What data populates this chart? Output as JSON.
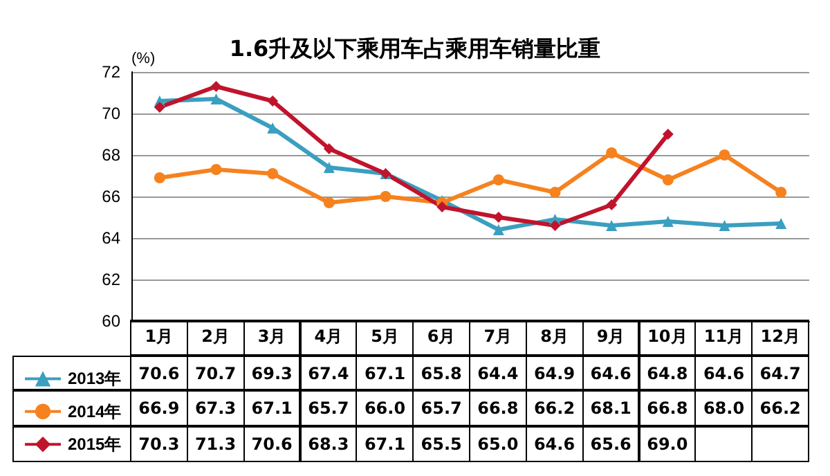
{
  "chart_data": {
    "type": "line",
    "title": "1.6升及以下乘用车占乘用车销量比重",
    "ylabel": "(%)",
    "categories": [
      "1月",
      "2月",
      "3月",
      "4月",
      "5月",
      "6月",
      "7月",
      "8月",
      "9月",
      "10月",
      "11月",
      "12月"
    ],
    "ylim": [
      60,
      72
    ],
    "yticks": [
      60,
      62,
      64,
      66,
      68,
      70,
      72
    ],
    "grid": "y",
    "legend": "bottom left",
    "line_style": "solid",
    "series": [
      {
        "name": "2013年",
        "color": "#3a9fc0",
        "marker": "triangle",
        "values": [
          70.6,
          70.7,
          69.3,
          67.4,
          67.1,
          65.8,
          64.4,
          64.9,
          64.6,
          64.8,
          64.6,
          64.7
        ],
        "value_labels": [
          "70.6",
          "70.7",
          "69.3",
          "67.4",
          "67.1",
          "65.8",
          "64.4",
          "64.9",
          "64.6",
          "64.8",
          "64.6",
          "64.7"
        ]
      },
      {
        "name": "2014年",
        "color": "#f5821f",
        "marker": "circle",
        "values": [
          66.9,
          67.3,
          67.1,
          65.7,
          66.0,
          65.7,
          66.8,
          66.2,
          68.1,
          66.8,
          68.0,
          66.2
        ],
        "value_labels": [
          "66.9",
          "67.3",
          "67.1",
          "65.7",
          "66.0",
          "65.7",
          "66.8",
          "66.2",
          "68.1",
          "66.8",
          "68.0",
          "66.2"
        ]
      },
      {
        "name": "2015年",
        "color": "#c0142c",
        "marker": "diamond",
        "values": [
          70.3,
          71.3,
          70.6,
          68.3,
          67.1,
          65.5,
          65.0,
          64.6,
          65.6,
          69.0,
          null,
          null
        ],
        "value_labels": [
          "70.3",
          "71.3",
          "70.6",
          "68.3",
          "67.1",
          "65.5",
          "65.0",
          "64.6",
          "65.6",
          "69.0",
          null,
          null
        ]
      }
    ]
  }
}
